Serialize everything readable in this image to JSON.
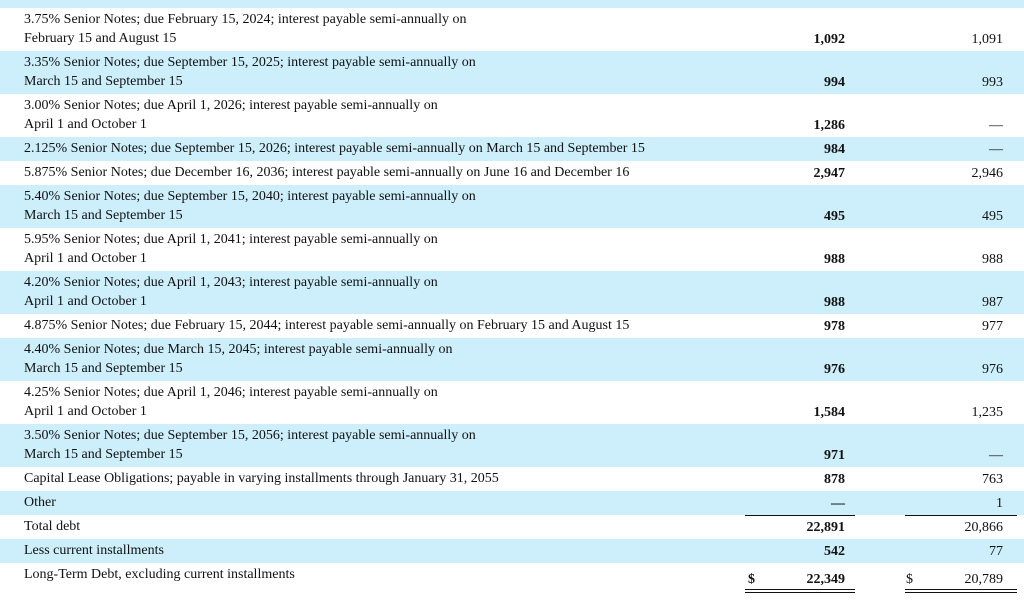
{
  "table": {
    "currency_symbol": "$",
    "rows": [
      {
        "description": [
          "3.75% Senior Notes; due February 15, 2024; interest payable semi-annually on",
          "February 15 and August 15"
        ],
        "current": "1,092",
        "prior": "1,091"
      },
      {
        "description": [
          "3.35% Senior Notes; due September 15, 2025; interest payable semi-annually on",
          "March 15 and September 15"
        ],
        "current": "994",
        "prior": "993"
      },
      {
        "description": [
          "3.00% Senior Notes; due April 1, 2026; interest payable semi-annually on",
          "April 1 and October 1"
        ],
        "current": "1,286",
        "prior": "—"
      },
      {
        "description": [
          "2.125% Senior Notes; due September 15, 2026; interest payable semi-annually on March 15 and September 15"
        ],
        "current": "984",
        "prior": "—"
      },
      {
        "description": [
          "5.875% Senior Notes; due December 16, 2036; interest payable semi-annually on June 16 and December 16"
        ],
        "current": "2,947",
        "prior": "2,946"
      },
      {
        "description": [
          "5.40% Senior Notes; due September 15, 2040; interest payable semi-annually on",
          "March 15 and September 15"
        ],
        "current": "495",
        "prior": "495"
      },
      {
        "description": [
          "5.95% Senior Notes; due April 1, 2041; interest payable semi-annually on",
          "April 1 and October 1"
        ],
        "current": "988",
        "prior": "988"
      },
      {
        "description": [
          "4.20% Senior Notes; due April 1, 2043; interest payable semi-annually on",
          "April 1 and October 1"
        ],
        "current": "988",
        "prior": "987"
      },
      {
        "description": [
          "4.875% Senior Notes; due February 15, 2044; interest payable semi-annually on February 15 and August 15"
        ],
        "current": "978",
        "prior": "977"
      },
      {
        "description": [
          "4.40% Senior Notes; due March 15, 2045; interest payable semi-annually on",
          "March 15 and September 15"
        ],
        "current": "976",
        "prior": "976"
      },
      {
        "description": [
          "4.25% Senior Notes; due April 1, 2046; interest payable semi-annually on",
          "April 1 and October 1"
        ],
        "current": "1,584",
        "prior": "1,235"
      },
      {
        "description": [
          "3.50% Senior Notes; due September 15, 2056; interest payable semi-annually on",
          "March 15 and September 15"
        ],
        "current": "971",
        "prior": "—"
      },
      {
        "description": [
          "Capital Lease Obligations; payable in varying installments through January 31, 2055"
        ],
        "current": "878",
        "prior": "763"
      },
      {
        "description": [
          "Other"
        ],
        "current": "—",
        "prior": "1"
      },
      {
        "description": [
          "Total debt"
        ],
        "current": "22,891",
        "prior": "20,866"
      },
      {
        "description": [
          "Less current installments"
        ],
        "current": "542",
        "prior": "77"
      },
      {
        "description": [
          "Long-Term Debt, excluding current installments"
        ],
        "current": "22,349",
        "prior": "20,789",
        "currency": true
      }
    ]
  }
}
